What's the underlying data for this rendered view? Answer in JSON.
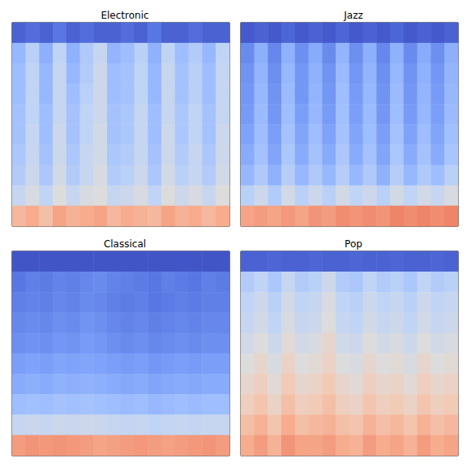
{
  "chart_data": [
    {
      "type": "heatmap",
      "title": "Electronic",
      "tick_labels": false,
      "value_range": [
        0,
        100
      ],
      "cells": [
        [
          5,
          8,
          5,
          10,
          5,
          8,
          5,
          5,
          8,
          5,
          10,
          5,
          5,
          8,
          5,
          5
        ],
        [
          28,
          38,
          25,
          40,
          26,
          35,
          42,
          27,
          30,
          38,
          26,
          40,
          30,
          36,
          28,
          40
        ],
        [
          30,
          40,
          28,
          42,
          28,
          36,
          44,
          30,
          32,
          40,
          28,
          42,
          32,
          38,
          30,
          42
        ],
        [
          30,
          40,
          28,
          42,
          30,
          38,
          44,
          30,
          32,
          40,
          28,
          42,
          32,
          38,
          30,
          42
        ],
        [
          32,
          40,
          30,
          42,
          32,
          40,
          44,
          32,
          34,
          42,
          30,
          42,
          34,
          40,
          32,
          42
        ],
        [
          32,
          42,
          30,
          44,
          32,
          40,
          46,
          32,
          34,
          42,
          30,
          44,
          34,
          40,
          32,
          44
        ],
        [
          34,
          42,
          32,
          44,
          34,
          42,
          46,
          34,
          36,
          42,
          32,
          44,
          36,
          42,
          34,
          44
        ],
        [
          36,
          44,
          34,
          46,
          36,
          42,
          48,
          36,
          38,
          44,
          34,
          46,
          38,
          42,
          36,
          46
        ],
        [
          42,
          48,
          40,
          50,
          42,
          48,
          50,
          42,
          44,
          48,
          40,
          50,
          44,
          48,
          42,
          50
        ],
        [
          66,
          70,
          64,
          72,
          68,
          70,
          72,
          66,
          70,
          68,
          66,
          72,
          68,
          70,
          66,
          70
        ]
      ]
    },
    {
      "type": "heatmap",
      "title": "Jazz",
      "tick_labels": false,
      "value_range": [
        0,
        100
      ],
      "cells": [
        [
          3,
          5,
          3,
          6,
          3,
          5,
          3,
          6,
          3,
          5,
          3,
          6,
          3,
          5,
          3,
          5
        ],
        [
          15,
          25,
          14,
          26,
          16,
          24,
          15,
          27,
          16,
          25,
          14,
          26,
          15,
          24,
          16,
          25
        ],
        [
          17,
          27,
          16,
          28,
          18,
          26,
          17,
          29,
          18,
          27,
          16,
          28,
          17,
          26,
          18,
          27
        ],
        [
          18,
          28,
          17,
          29,
          18,
          27,
          18,
          30,
          19,
          28,
          17,
          29,
          18,
          27,
          19,
          28
        ],
        [
          19,
          29,
          18,
          30,
          20,
          28,
          19,
          31,
          20,
          29,
          18,
          30,
          19,
          28,
          20,
          29
        ],
        [
          21,
          30,
          20,
          32,
          22,
          30,
          21,
          32,
          22,
          30,
          20,
          32,
          21,
          30,
          22,
          31
        ],
        [
          24,
          32,
          22,
          34,
          24,
          32,
          24,
          34,
          24,
          32,
          22,
          34,
          24,
          32,
          24,
          33
        ],
        [
          28,
          35,
          26,
          37,
          28,
          35,
          28,
          37,
          28,
          35,
          26,
          37,
          28,
          35,
          30,
          38
        ],
        [
          38,
          44,
          36,
          46,
          38,
          44,
          38,
          46,
          40,
          44,
          38,
          46,
          40,
          46,
          42,
          48
        ],
        [
          72,
          74,
          72,
          75,
          72,
          76,
          74,
          78,
          76,
          78,
          76,
          80,
          78,
          80,
          78,
          80
        ]
      ]
    },
    {
      "type": "heatmap",
      "title": "Classical",
      "tick_labels": false,
      "value_range": [
        0,
        100
      ],
      "cells": [
        [
          2,
          2,
          2,
          2,
          2,
          2,
          2,
          2,
          2,
          2,
          2,
          2,
          2,
          2,
          2,
          2
        ],
        [
          10,
          12,
          11,
          13,
          12,
          14,
          15,
          13,
          12,
          11,
          10,
          12,
          11,
          10,
          12,
          11
        ],
        [
          12,
          13,
          12,
          14,
          13,
          15,
          14,
          12,
          11,
          12,
          10,
          11,
          12,
          11,
          12,
          12
        ],
        [
          14,
          15,
          14,
          16,
          15,
          17,
          16,
          14,
          13,
          14,
          12,
          13,
          14,
          13,
          14,
          14
        ],
        [
          16,
          17,
          16,
          18,
          17,
          19,
          18,
          16,
          15,
          16,
          14,
          15,
          16,
          15,
          16,
          16
        ],
        [
          20,
          21,
          20,
          22,
          21,
          22,
          21,
          20,
          19,
          20,
          18,
          19,
          20,
          19,
          20,
          20
        ],
        [
          24,
          25,
          24,
          26,
          25,
          26,
          25,
          24,
          23,
          24,
          22,
          23,
          24,
          23,
          24,
          24
        ],
        [
          30,
          31,
          30,
          32,
          31,
          32,
          31,
          30,
          29,
          30,
          28,
          29,
          30,
          29,
          30,
          30
        ],
        [
          42,
          43,
          42,
          44,
          43,
          44,
          43,
          42,
          41,
          42,
          40,
          41,
          42,
          41,
          42,
          42
        ],
        [
          74,
          76,
          75,
          76,
          75,
          74,
          72,
          73,
          74,
          75,
          74,
          73,
          74,
          75,
          76,
          74
        ]
      ]
    },
    {
      "type": "heatmap",
      "title": "Pop",
      "tick_labels": false,
      "value_range": [
        0,
        100
      ],
      "cells": [
        [
          5,
          5,
          6,
          5,
          5,
          6,
          5,
          5,
          6,
          5,
          5,
          6,
          5,
          5,
          6,
          5
        ],
        [
          36,
          40,
          34,
          42,
          36,
          38,
          44,
          36,
          34,
          40,
          36,
          38,
          34,
          40,
          36,
          38
        ],
        [
          40,
          44,
          38,
          46,
          40,
          42,
          48,
          40,
          38,
          44,
          40,
          42,
          38,
          44,
          40,
          42
        ],
        [
          42,
          46,
          40,
          48,
          42,
          44,
          50,
          42,
          40,
          46,
          42,
          44,
          40,
          46,
          42,
          44
        ],
        [
          46,
          50,
          44,
          52,
          46,
          48,
          54,
          46,
          44,
          50,
          46,
          48,
          44,
          50,
          46,
          48
        ],
        [
          50,
          54,
          48,
          56,
          50,
          52,
          56,
          50,
          48,
          54,
          50,
          52,
          48,
          54,
          50,
          52
        ],
        [
          54,
          58,
          52,
          60,
          54,
          56,
          60,
          54,
          52,
          58,
          54,
          56,
          52,
          58,
          54,
          56
        ],
        [
          58,
          62,
          56,
          64,
          58,
          60,
          64,
          58,
          56,
          62,
          58,
          60,
          56,
          62,
          58,
          60
        ],
        [
          64,
          68,
          62,
          70,
          64,
          66,
          68,
          64,
          62,
          68,
          64,
          66,
          62,
          68,
          64,
          66
        ],
        [
          70,
          74,
          68,
          76,
          72,
          72,
          74,
          70,
          68,
          74,
          70,
          72,
          68,
          74,
          70,
          72
        ]
      ]
    }
  ]
}
